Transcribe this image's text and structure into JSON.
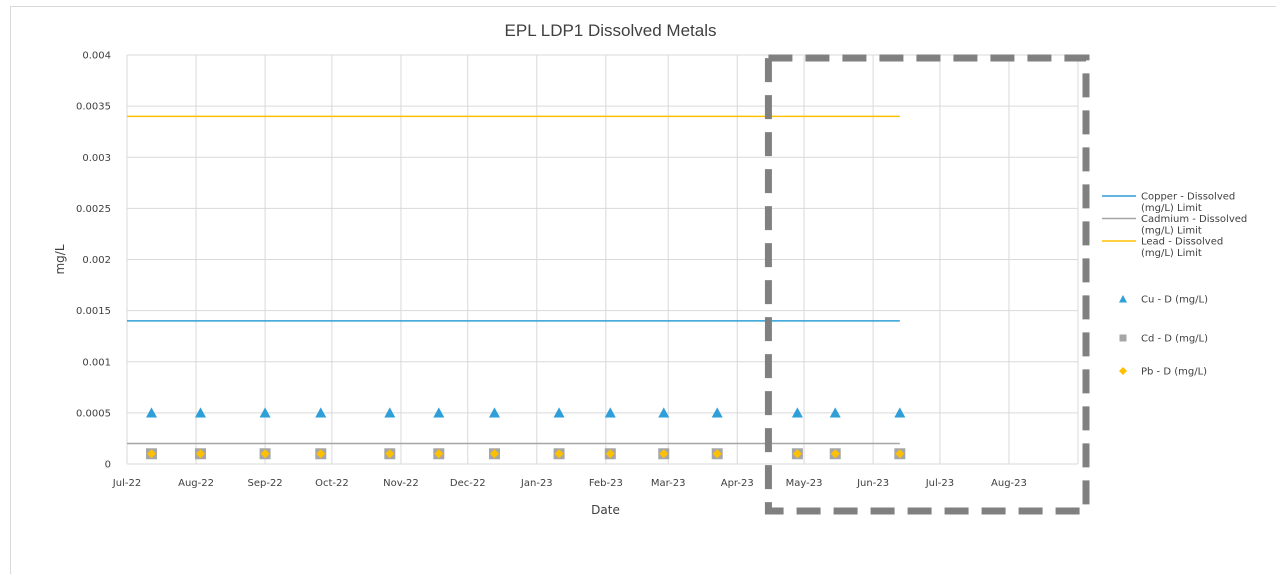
{
  "chart_data": {
    "type": "scatter",
    "title": "EPL LDP1 Dissolved Metals",
    "xlabel": "Date",
    "ylabel": "mg/L",
    "ylim": [
      0,
      0.004
    ],
    "yticks": [
      "0",
      "0.0005",
      "0.001",
      "0.0015",
      "0.002",
      "0.0025",
      "0.003",
      "0.0035",
      "0.004"
    ],
    "xticks": [
      "Jul-22",
      "Aug-22",
      "Sep-22",
      "Oct-22",
      "Nov-22",
      "Dec-22",
      "Jan-23",
      "Feb-23",
      "Mar-23",
      "Apr-23",
      "May-23",
      "Jun-23",
      "Jul-23",
      "Aug-23"
    ],
    "xlim": [
      "2022-07-01",
      "2023-09-01"
    ],
    "grid": true,
    "legend_position": "right",
    "sample_dates": [
      "2022-07-12",
      "2022-08-03",
      "2022-09-01",
      "2022-09-26",
      "2022-10-27",
      "2022-11-18",
      "2022-12-13",
      "2023-01-11",
      "2023-02-03",
      "2023-02-27",
      "2023-03-23",
      "2023-04-28",
      "2023-05-15",
      "2023-06-13"
    ],
    "limits": [
      {
        "name": "Copper - Dissolved (mg/L) Limit",
        "value": 0.0014,
        "color": "#2e9fd8",
        "x_end": "2023-06-13"
      },
      {
        "name": "Cadmium - Dissolved (mg/L) Limit",
        "value": 0.0002,
        "color": "#a6a6a6",
        "x_end": "2023-06-13"
      },
      {
        "name": "Lead - Dissolved (mg/L) Limit",
        "value": 0.0034,
        "color": "#ffc000",
        "x_end": "2023-06-13"
      }
    ],
    "series": [
      {
        "name": "Cu - D (mg/L)",
        "marker": "triangle",
        "color": "#2e9fd8",
        "values": [
          0.0005,
          0.0005,
          0.0005,
          0.0005,
          0.0005,
          0.0005,
          0.0005,
          0.0005,
          0.0005,
          0.0005,
          0.0005,
          0.0005,
          0.0005,
          0.0005
        ]
      },
      {
        "name": "Cd - D (mg/L)",
        "marker": "square",
        "color": "#a6a6a6",
        "values": [
          0.0001,
          0.0001,
          0.0001,
          0.0001,
          0.0001,
          0.0001,
          0.0001,
          0.0001,
          0.0001,
          0.0001,
          0.0001,
          0.0001,
          0.0001,
          0.0001
        ]
      },
      {
        "name": "Pb - D (mg/L)",
        "marker": "diamond",
        "color": "#ffc000",
        "values": [
          0.0001,
          0.0001,
          0.0001,
          0.0001,
          0.0001,
          0.0001,
          0.0001,
          0.0001,
          0.0001,
          0.0001,
          0.0001,
          0.0001,
          0.0001,
          0.0001
        ]
      }
    ],
    "highlight_box": {
      "x_start": "2023-04-15",
      "x_end": "2023-09-01",
      "style": "dashed",
      "color": "#808080"
    }
  }
}
